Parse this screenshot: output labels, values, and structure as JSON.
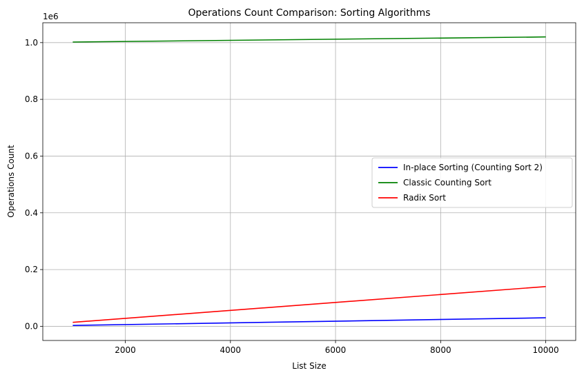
{
  "chart_data": {
    "type": "line",
    "title": "Operations Count Comparison: Sorting Algorithms",
    "xlabel": "List Size",
    "ylabel": "Operations Count",
    "y_offset_label": "1e6",
    "xlim": [
      430,
      10570
    ],
    "ylim": [
      -50000,
      1070000
    ],
    "x_ticks": [
      2000,
      4000,
      6000,
      8000,
      10000
    ],
    "x_tick_labels": [
      "2000",
      "4000",
      "6000",
      "8000",
      "10000"
    ],
    "y_ticks": [
      0,
      200000,
      400000,
      600000,
      800000,
      1000000
    ],
    "y_tick_labels": [
      "0.0",
      "0.2",
      "0.4",
      "0.6",
      "0.8",
      "1.0"
    ],
    "grid": true,
    "legend_position": "center-right",
    "x": [
      1000,
      10000
    ],
    "series": [
      {
        "name": "In-place Sorting (Counting Sort 2)",
        "color": "#0000ff",
        "values": [
          3000,
          30000
        ]
      },
      {
        "name": "Classic Counting Sort",
        "color": "#008000",
        "values": [
          1002000,
          1020000
        ]
      },
      {
        "name": "Radix Sort",
        "color": "#ff0000",
        "values": [
          14000,
          140000
        ]
      }
    ]
  }
}
